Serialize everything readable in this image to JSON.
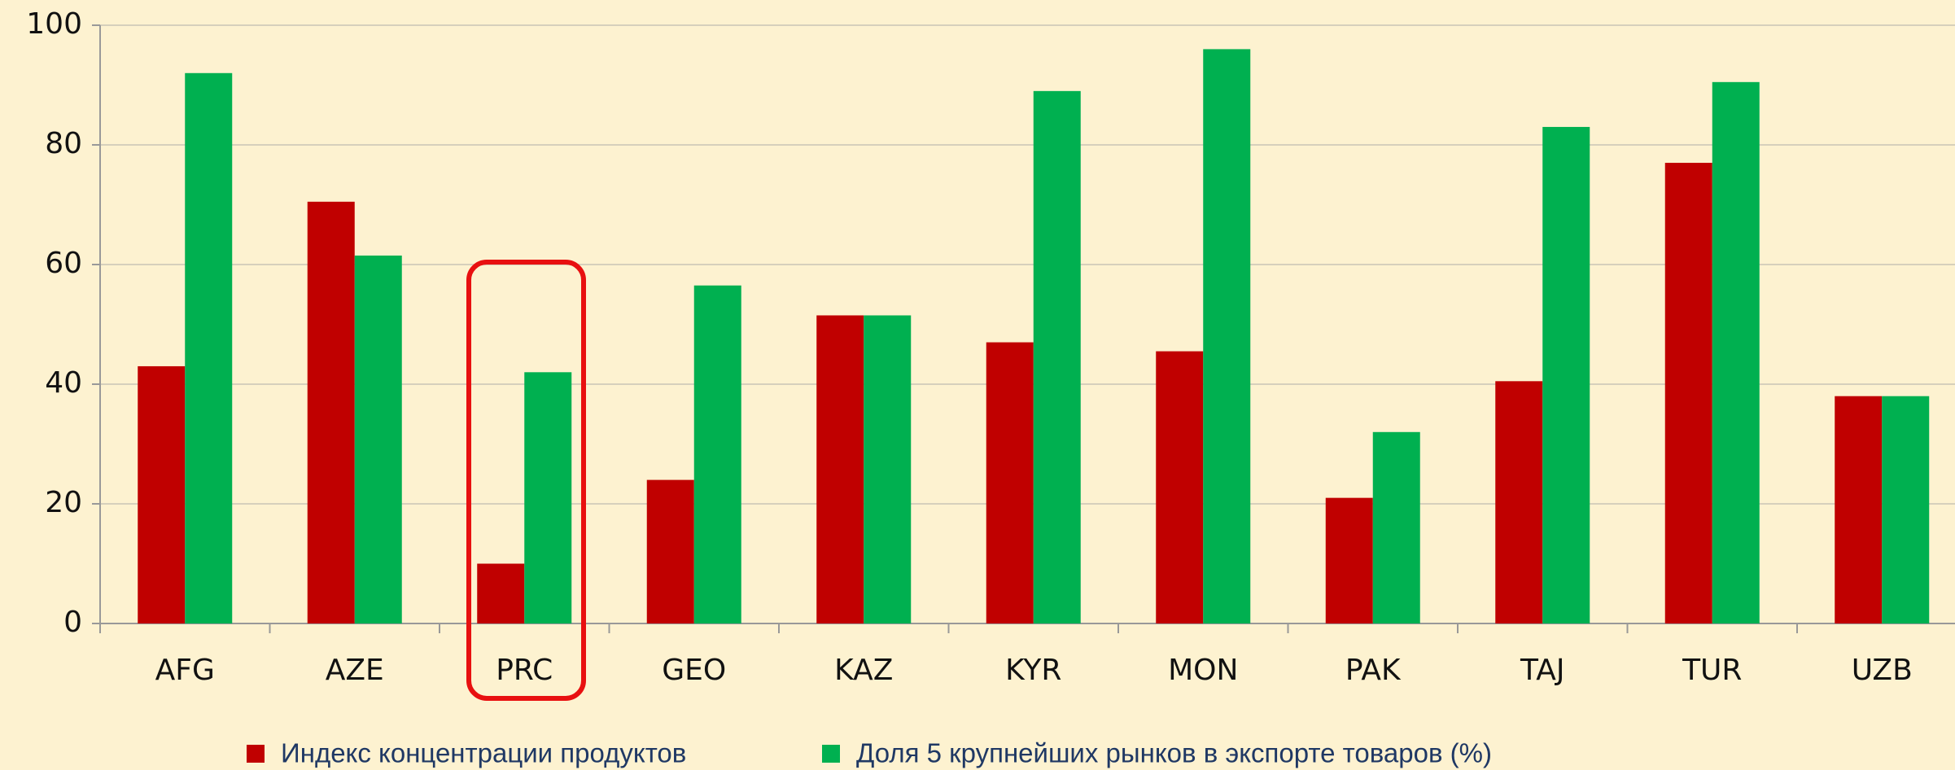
{
  "chart_data": {
    "type": "bar",
    "categories": [
      "AFG",
      "AZE",
      "PRC",
      "GEO",
      "KAZ",
      "KYR",
      "MON",
      "PAK",
      "TAJ",
      "TUR",
      "UZB"
    ],
    "series": [
      {
        "name": "Индекс концентрации продуктов",
        "color": "#c00000",
        "values": [
          43,
          70.5,
          10,
          24,
          51.5,
          47,
          45.5,
          21,
          40.5,
          77,
          38
        ]
      },
      {
        "name": "Доля 5 крупнейших рынков в экспорте товаров (%)",
        "color": "#00b050",
        "values": [
          92,
          61.5,
          42,
          56.5,
          51.5,
          89,
          96,
          32,
          83,
          90.5,
          38
        ]
      }
    ],
    "ylim": [
      0,
      100
    ],
    "yticks": [
      0,
      20,
      40,
      60,
      80,
      100
    ],
    "grid": true
  }
}
